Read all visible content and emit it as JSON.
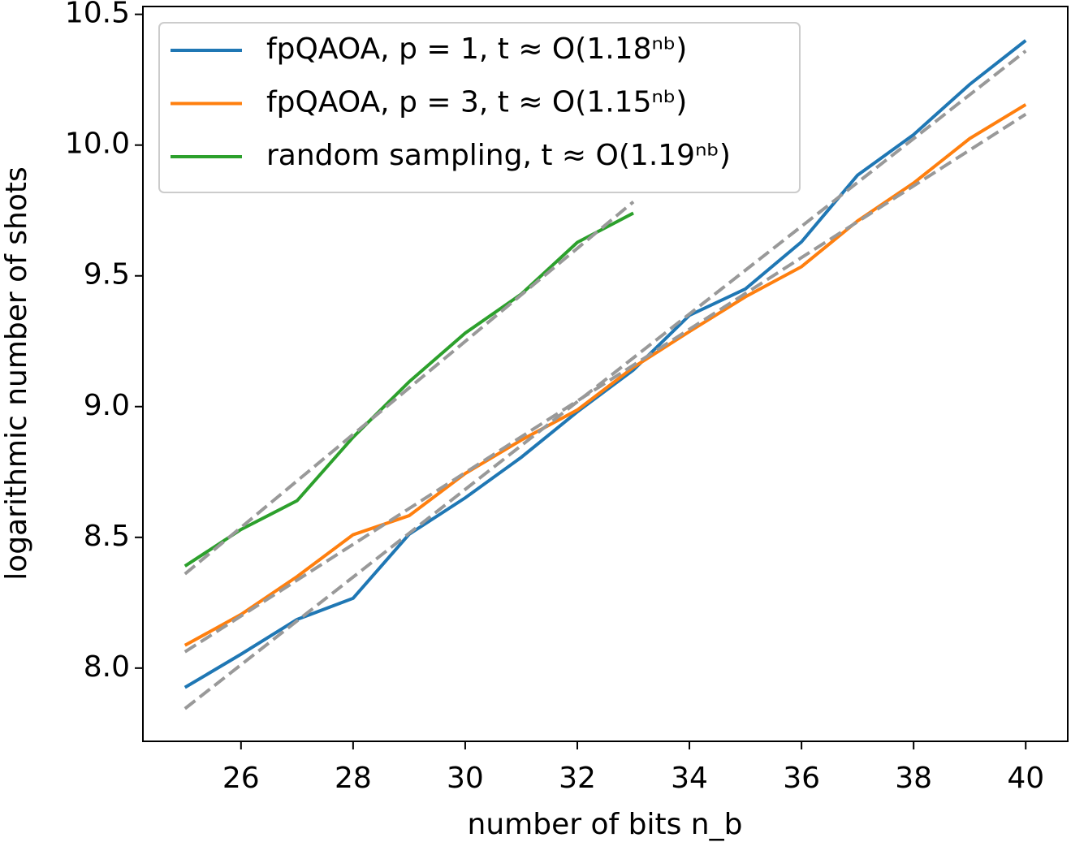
{
  "chart_data": {
    "type": "line",
    "xlabel": "number of bits n_b",
    "ylabel": "logarithmic number of shots",
    "xlim": [
      24.25,
      40.75
    ],
    "ylim": [
      7.72,
      10.53
    ],
    "xticks": [
      26,
      28,
      30,
      32,
      34,
      36,
      38,
      40
    ],
    "yticks": [
      {
        "value": 8.0,
        "label": "8.0"
      },
      8.5,
      {
        "value": 9.0,
        "label": "9.0"
      },
      9.5,
      {
        "value": 10.0,
        "label": "10.0"
      },
      10.5
    ],
    "legend": "upper left",
    "series": [
      {
        "name": "fpQAOA, p = 1, t ≈ O(1.18ⁿᵇ)",
        "color": "#1f77b4",
        "x": [
          25,
          26,
          27,
          28,
          29,
          30,
          31,
          32,
          33,
          34,
          35,
          36,
          37,
          38,
          39,
          40
        ],
        "values": [
          7.926,
          8.053,
          8.186,
          8.267,
          8.512,
          8.651,
          8.806,
          8.98,
          9.14,
          9.349,
          9.45,
          9.63,
          9.885,
          10.04,
          10.232,
          10.4
        ]
      },
      {
        "name": "fpQAOA, p = 3, t ≈ O(1.15ⁿᵇ)",
        "color": "#ff7f0e",
        "x": [
          25,
          26,
          27,
          28,
          29,
          30,
          31,
          32,
          33,
          34,
          35,
          36,
          37,
          38,
          39,
          40
        ],
        "values": [
          8.087,
          8.205,
          8.35,
          8.51,
          8.583,
          8.744,
          8.872,
          8.987,
          9.15,
          9.287,
          9.42,
          9.535,
          9.71,
          9.855,
          10.025,
          10.155
        ]
      },
      {
        "name": "random sampling, t ≈ O(1.19ⁿᵇ)",
        "color": "#2ca02c",
        "x": [
          25,
          26,
          27,
          28,
          29,
          30,
          31,
          32,
          33
        ],
        "values": [
          8.39,
          8.53,
          8.64,
          8.883,
          9.095,
          9.281,
          9.43,
          9.628,
          9.74
        ]
      }
    ],
    "fit_lines": [
      {
        "color": "#999999",
        "x": [
          25,
          40
        ],
        "values": [
          7.845,
          10.36
        ]
      },
      {
        "color": "#999999",
        "x": [
          25,
          40
        ],
        "values": [
          8.062,
          10.118
        ]
      },
      {
        "color": "#999999",
        "x": [
          25,
          33
        ],
        "values": [
          8.36,
          9.783
        ]
      }
    ]
  }
}
